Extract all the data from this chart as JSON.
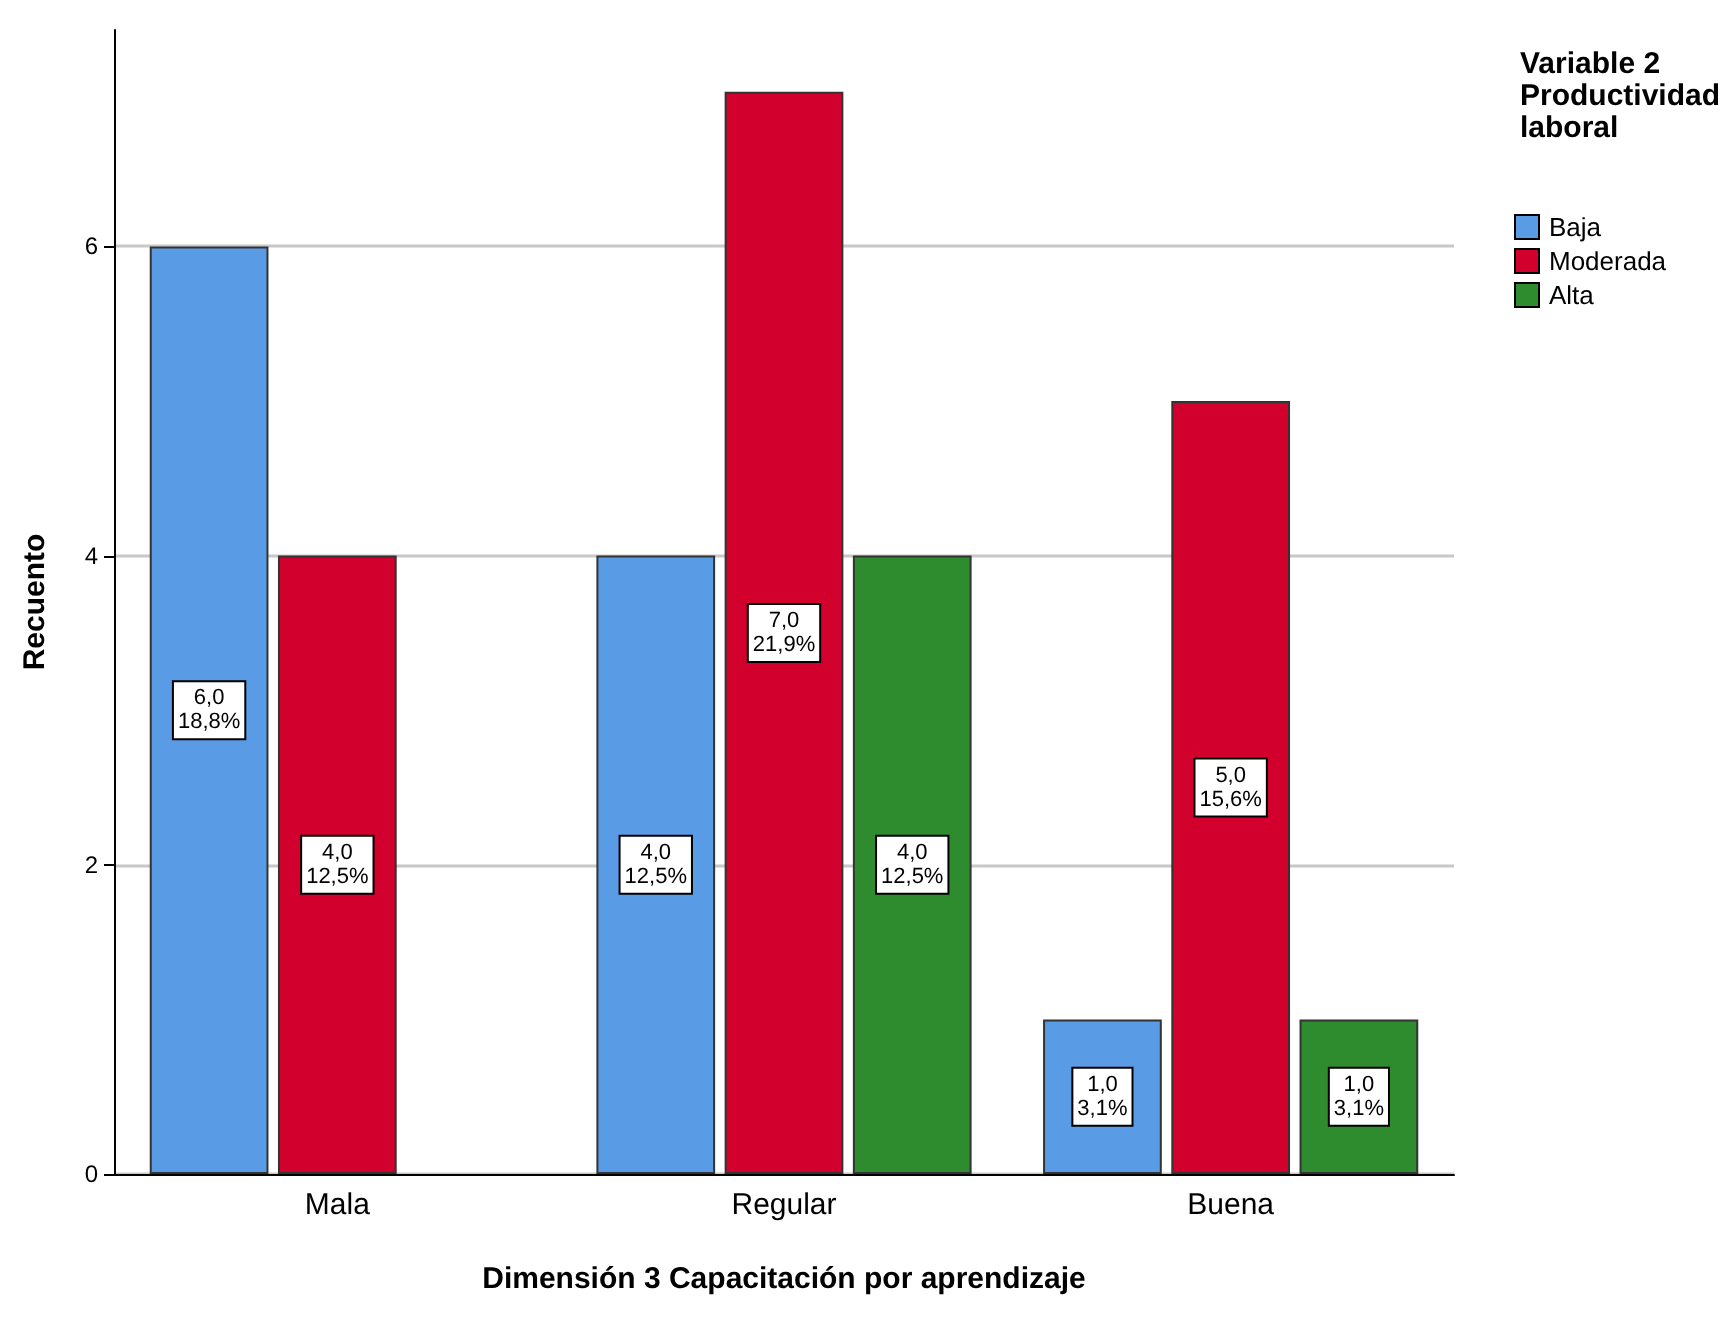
{
  "chart_data": {
    "type": "bar",
    "xlabel": "Dimensión 3 Capacitación por aprendizaje",
    "ylabel": "Recuento",
    "legend_title": "Variable 2\nProductividad\nlaboral",
    "categories": [
      "Mala",
      "Regular",
      "Buena"
    ],
    "series": [
      {
        "name": "Baja",
        "color": "#5a9be6",
        "values": [
          6,
          4,
          1
        ],
        "value_labels": [
          "6,0\n18,8%",
          "4,0\n12,5%",
          "1,0\n3,1%"
        ]
      },
      {
        "name": "Moderada",
        "color": "#d2002d",
        "values": [
          4,
          7,
          5
        ],
        "value_labels": [
          "4,0\n12,5%",
          "7,0\n21,9%",
          "5,0\n15,6%"
        ]
      },
      {
        "name": "Alta",
        "color": "#2e8b2e",
        "values": [
          null,
          4,
          1
        ],
        "value_labels": [
          null,
          "4,0\n12,5%",
          "1,0\n3,1%"
        ]
      }
    ],
    "ylim": [
      0,
      7.4
    ],
    "yticks": [
      0,
      2,
      4,
      6
    ],
    "grid": "y",
    "legend": "top right"
  }
}
